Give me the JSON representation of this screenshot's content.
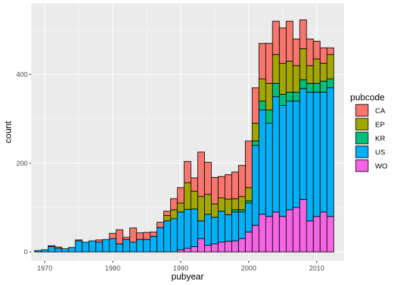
{
  "chart_data": {
    "type": "bar",
    "stacked": true,
    "xlabel": "pubyear",
    "ylabel": "count",
    "xlim": [
      1968,
      2014
    ],
    "ylim": [
      -20,
      560
    ],
    "x_ticks": [
      1970,
      1980,
      1990,
      2000,
      2010
    ],
    "y_ticks": [
      0,
      200,
      400
    ],
    "grid": true,
    "legend_position": "right",
    "legend_title": "pubcode",
    "x": [
      1969,
      1970,
      1971,
      1972,
      1973,
      1974,
      1975,
      1976,
      1977,
      1978,
      1979,
      1980,
      1981,
      1982,
      1983,
      1984,
      1985,
      1986,
      1987,
      1988,
      1989,
      1990,
      1991,
      1992,
      1993,
      1994,
      1995,
      1996,
      1997,
      1998,
      1999,
      2000,
      2001,
      2002,
      2003,
      2004,
      2005,
      2006,
      2007,
      2008,
      2009,
      2010,
      2011,
      2012
    ],
    "series": [
      {
        "name": "WO",
        "color": "#F564E3",
        "values": [
          0,
          0,
          0,
          0,
          0,
          0,
          0,
          0,
          0,
          0,
          0,
          0,
          0,
          0,
          0,
          0,
          0,
          0,
          0,
          0,
          0,
          5,
          8,
          12,
          30,
          15,
          18,
          22,
          24,
          25,
          30,
          45,
          60,
          85,
          80,
          90,
          80,
          95,
          100,
          118,
          70,
          80,
          90,
          80
        ]
      },
      {
        "name": "US",
        "color": "#00B0F6",
        "values": [
          3,
          5,
          12,
          8,
          7,
          10,
          25,
          22,
          25,
          22,
          28,
          30,
          18,
          28,
          22,
          28,
          28,
          35,
          55,
          70,
          75,
          85,
          88,
          85,
          40,
          70,
          60,
          70,
          60,
          65,
          60,
          65,
          180,
          235,
          210,
          260,
          250,
          245,
          240,
          250,
          290,
          280,
          270,
          290
        ]
      },
      {
        "name": "KR",
        "color": "#00BF7D",
        "values": [
          0,
          0,
          0,
          0,
          0,
          0,
          0,
          0,
          0,
          0,
          0,
          0,
          0,
          0,
          0,
          0,
          0,
          0,
          0,
          0,
          0,
          0,
          0,
          0,
          0,
          0,
          0,
          0,
          0,
          5,
          5,
          5,
          10,
          20,
          30,
          30,
          25,
          20,
          20,
          20,
          20,
          20,
          25,
          20
        ]
      },
      {
        "name": "EP",
        "color": "#A3A500",
        "values": [
          0,
          0,
          0,
          0,
          0,
          0,
          0,
          0,
          0,
          0,
          0,
          0,
          0,
          0,
          0,
          0,
          0,
          0,
          0,
          12,
          20,
          20,
          60,
          40,
          55,
          45,
          30,
          30,
          35,
          25,
          30,
          30,
          40,
          50,
          60,
          65,
          70,
          70,
          60,
          70,
          40,
          55,
          40,
          55
        ]
      },
      {
        "name": "CA",
        "color": "#F8766D",
        "values": [
          0,
          0,
          2,
          3,
          0,
          0,
          2,
          0,
          0,
          5,
          0,
          12,
          32,
          5,
          32,
          15,
          16,
          10,
          12,
          10,
          25,
          35,
          48,
          30,
          100,
          72,
          60,
          48,
          55,
          60,
          70,
          105,
          80,
          80,
          90,
          75,
          80,
          90,
          60,
          65,
          60,
          40,
          35,
          15
        ]
      }
    ],
    "legend_order": [
      "CA",
      "EP",
      "KR",
      "US",
      "WO"
    ]
  }
}
